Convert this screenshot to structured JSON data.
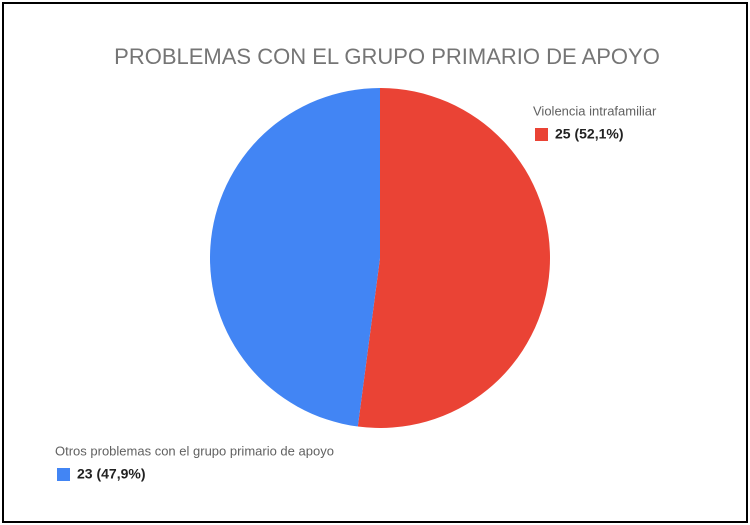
{
  "chart_data": {
    "type": "pie",
    "title": "PROBLEMAS CON EL GRUPO PRIMARIO DE APOYO",
    "categories": [
      "Violencia intrafamiliar",
      "Otros problemas con el grupo primario de apoyo"
    ],
    "values": [
      25,
      23
    ],
    "value_labels": [
      "25 (52,1%)",
      "23 (47,9%)"
    ],
    "colors": [
      "#ea4335",
      "#4285f4"
    ]
  }
}
